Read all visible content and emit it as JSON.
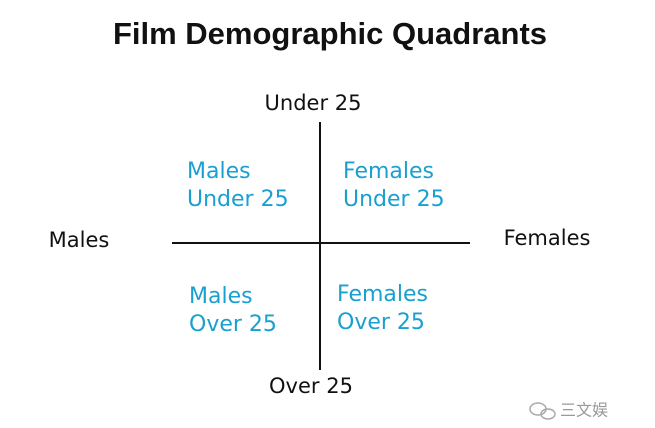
{
  "title": "Film Demographic Quadrants",
  "axes": {
    "top": "Under 25",
    "bottom": "Over 25",
    "left": "Males",
    "right": "Females"
  },
  "quadrants": [
    {
      "lines": [
        "Males",
        "Under 25"
      ]
    },
    {
      "lines": [
        "Females",
        "Under 25"
      ]
    },
    {
      "lines": [
        "Males",
        "Over 25"
      ]
    },
    {
      "lines": [
        "Females",
        "Over 25"
      ]
    }
  ],
  "watermark": "三文娱"
}
